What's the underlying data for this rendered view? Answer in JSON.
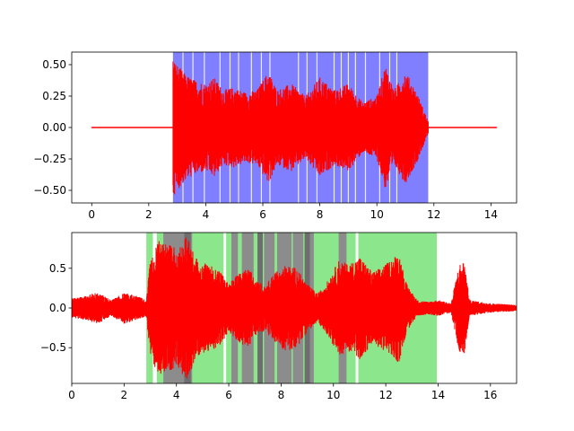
{
  "chart_data": [
    {
      "type": "line",
      "title": "",
      "xlabel": "",
      "ylabel": "",
      "xlim": [
        -0.7,
        14.9
      ],
      "ylim": [
        -0.6,
        0.6
      ],
      "xticks": [
        0,
        2,
        4,
        6,
        8,
        10,
        12,
        14
      ],
      "yticks": [
        -0.5,
        -0.25,
        0.0,
        0.25,
        0.5
      ],
      "xtick_labels": [
        "0",
        "2",
        "4",
        "6",
        "8",
        "10",
        "12",
        "14"
      ],
      "ytick_labels": [
        "−0.50",
        "−0.25",
        "0.00",
        "0.25",
        "0.50"
      ],
      "grid": false,
      "line_color": "#ff0000",
      "signal_range": [
        0,
        14.2
      ],
      "active_range": [
        2.85,
        11.8
      ],
      "envelope": [
        [
          2.85,
          0.55
        ],
        [
          3.0,
          0.5
        ],
        [
          3.3,
          0.42
        ],
        [
          3.6,
          0.38
        ],
        [
          4.0,
          0.35
        ],
        [
          4.3,
          0.4
        ],
        [
          4.6,
          0.3
        ],
        [
          5.0,
          0.32
        ],
        [
          5.4,
          0.28
        ],
        [
          5.8,
          0.3
        ],
        [
          6.2,
          0.45
        ],
        [
          6.5,
          0.3
        ],
        [
          7.0,
          0.35
        ],
        [
          7.5,
          0.25
        ],
        [
          8.0,
          0.4
        ],
        [
          8.5,
          0.3
        ],
        [
          9.0,
          0.35
        ],
        [
          9.5,
          0.2
        ],
        [
          10.0,
          0.25
        ],
        [
          10.3,
          0.5
        ],
        [
          10.6,
          0.3
        ],
        [
          11.0,
          0.45
        ],
        [
          11.4,
          0.28
        ],
        [
          11.8,
          0.05
        ]
      ],
      "region_bands": [
        {
          "x0": 2.85,
          "x1": 11.8,
          "color": "#7f7fff"
        }
      ],
      "gap_lines": [
        3.2,
        3.55,
        3.95,
        4.5,
        4.85,
        5.15,
        5.6,
        5.95,
        6.25,
        7.25,
        7.55,
        7.9,
        8.5,
        8.75,
        9.0,
        9.25,
        9.6,
        10.1,
        10.45,
        10.7
      ]
    },
    {
      "type": "line",
      "title": "",
      "xlabel": "",
      "ylabel": "",
      "xlim": [
        0,
        17
      ],
      "ylim": [
        -0.95,
        0.95
      ],
      "xticks": [
        0,
        2,
        4,
        6,
        8,
        10,
        12,
        14,
        16
      ],
      "yticks": [
        -0.5,
        0.0,
        0.5
      ],
      "xtick_labels": [
        "0",
        "2",
        "4",
        "6",
        "8",
        "10",
        "12",
        "14",
        "16"
      ],
      "ytick_labels": [
        "−0.5",
        "0.0",
        "0.5"
      ],
      "grid": false,
      "line_color": "#ff0000",
      "signal_range": [
        0,
        17
      ],
      "envelope": [
        [
          0,
          0.12
        ],
        [
          0.5,
          0.15
        ],
        [
          1.0,
          0.2
        ],
        [
          1.5,
          0.1
        ],
        [
          2.0,
          0.2
        ],
        [
          2.5,
          0.15
        ],
        [
          2.85,
          0.1
        ],
        [
          3.0,
          0.6
        ],
        [
          3.3,
          0.85
        ],
        [
          3.7,
          0.8
        ],
        [
          4.0,
          0.75
        ],
        [
          4.4,
          0.9
        ],
        [
          4.8,
          0.6
        ],
        [
          5.2,
          0.55
        ],
        [
          5.6,
          0.5
        ],
        [
          6.0,
          0.3
        ],
        [
          6.4,
          0.45
        ],
        [
          6.8,
          0.5
        ],
        [
          7.0,
          0.35
        ],
        [
          7.4,
          0.3
        ],
        [
          7.8,
          0.45
        ],
        [
          8.2,
          0.55
        ],
        [
          8.6,
          0.5
        ],
        [
          9.0,
          0.3
        ],
        [
          9.4,
          0.18
        ],
        [
          9.8,
          0.35
        ],
        [
          10.2,
          0.6
        ],
        [
          10.6,
          0.55
        ],
        [
          11.0,
          0.65
        ],
        [
          11.5,
          0.45
        ],
        [
          12.0,
          0.55
        ],
        [
          12.5,
          0.7
        ],
        [
          12.8,
          0.3
        ],
        [
          13.2,
          0.1
        ],
        [
          13.6,
          0.08
        ],
        [
          14.0,
          0.1
        ],
        [
          14.5,
          0.06
        ],
        [
          14.8,
          0.55
        ],
        [
          15.0,
          0.6
        ],
        [
          15.2,
          0.1
        ],
        [
          15.6,
          0.08
        ],
        [
          16.0,
          0.06
        ],
        [
          16.5,
          0.05
        ],
        [
          17.0,
          0.04
        ]
      ],
      "region_bands": [
        {
          "x0": 2.85,
          "x1": 13.95,
          "color": "#8ce68c"
        },
        {
          "x0": 3.1,
          "x1": 3.25,
          "color": "#ffffff"
        },
        {
          "x0": 3.5,
          "x1": 4.6,
          "color": "#8c8c8c"
        },
        {
          "x0": 5.8,
          "x1": 5.9,
          "color": "#ffffff"
        },
        {
          "x0": 6.1,
          "x1": 6.35,
          "color": "#8c8c8c"
        },
        {
          "x0": 6.5,
          "x1": 6.95,
          "color": "#8c8c8c"
        },
        {
          "x0": 7.1,
          "x1": 7.3,
          "color": "#8c8c8c"
        },
        {
          "x0": 7.35,
          "x1": 7.75,
          "color": "#8c8c8c"
        },
        {
          "x0": 7.85,
          "x1": 8.4,
          "color": "#8c8c8c"
        },
        {
          "x0": 8.45,
          "x1": 8.85,
          "color": "#8c8c8c"
        },
        {
          "x0": 8.9,
          "x1": 9.25,
          "color": "#8c8c8c"
        },
        {
          "x0": 10.2,
          "x1": 10.5,
          "color": "#8c8c8c"
        },
        {
          "x0": 10.85,
          "x1": 10.95,
          "color": "#ffffff"
        }
      ],
      "dark_bands": [
        {
          "x0": 4.3,
          "x1": 4.55,
          "color": "#6e6e6e"
        },
        {
          "x0": 7.1,
          "x1": 7.3,
          "color": "#6e6e6e"
        },
        {
          "x0": 8.9,
          "x1": 9.1,
          "color": "#6e6e6e"
        }
      ]
    }
  ]
}
